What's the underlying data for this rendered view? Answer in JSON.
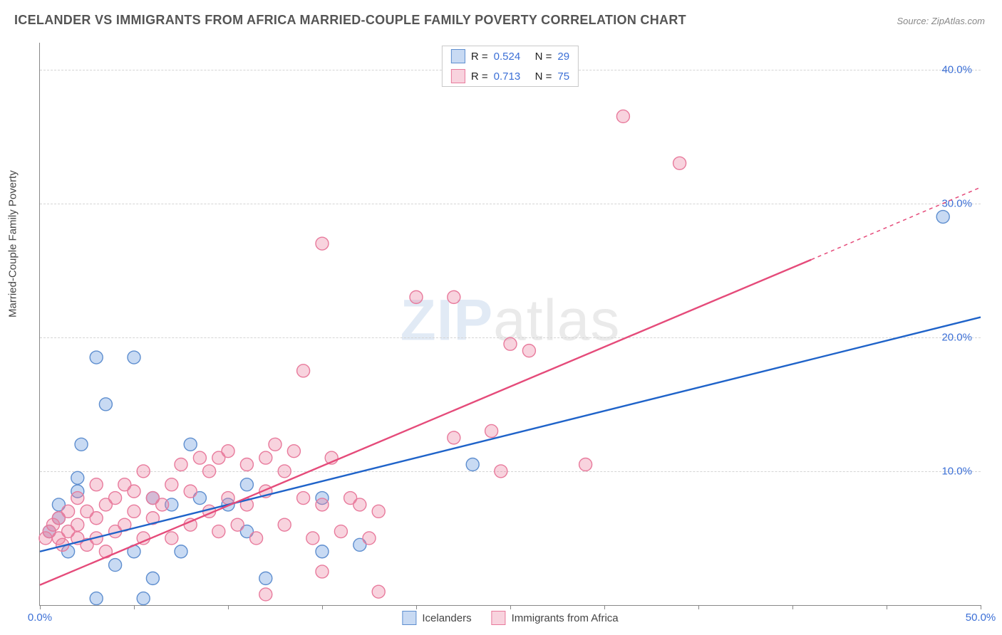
{
  "title": "ICELANDER VS IMMIGRANTS FROM AFRICA MARRIED-COUPLE FAMILY POVERTY CORRELATION CHART",
  "source": "Source: ZipAtlas.com",
  "y_axis_label": "Married-Couple Family Poverty",
  "watermark_a": "ZIP",
  "watermark_b": "atlas",
  "chart": {
    "type": "scatter",
    "background_color": "#ffffff",
    "grid_color": "#d5d5d5",
    "axis_color": "#888888",
    "tick_label_color": "#3b6fd6",
    "xlim": [
      0,
      50
    ],
    "ylim": [
      0,
      42
    ],
    "x_ticks": [
      0,
      5,
      10,
      15,
      20,
      25,
      30,
      35,
      40,
      45,
      50
    ],
    "x_tick_labels": {
      "0": "0.0%",
      "50": "50.0%"
    },
    "y_gridlines": [
      10,
      20,
      30,
      40
    ],
    "y_tick_labels": {
      "10": "10.0%",
      "20": "20.0%",
      "30": "30.0%",
      "40": "40.0%"
    },
    "marker_radius": 9,
    "marker_stroke_width": 1.4,
    "trend_line_width": 2.4,
    "series": [
      {
        "id": "icelanders",
        "label": "Icelanders",
        "fill": "rgba(96,150,220,0.35)",
        "stroke": "#5e8ecf",
        "line_color": "#1f63c9",
        "R": "0.524",
        "N": "29",
        "trend_solid": {
          "x1": 0,
          "y1": 4.0,
          "x2": 50,
          "y2": 21.5
        },
        "points": [
          [
            0.5,
            5.5
          ],
          [
            1,
            6.5
          ],
          [
            1,
            7.5
          ],
          [
            1.5,
            4
          ],
          [
            2,
            8.5
          ],
          [
            2,
            9.5
          ],
          [
            2.2,
            12
          ],
          [
            3,
            18.5
          ],
          [
            3,
            0.5
          ],
          [
            3.5,
            15
          ],
          [
            4,
            3
          ],
          [
            5,
            18.5
          ],
          [
            5,
            4
          ],
          [
            5.5,
            0.5
          ],
          [
            6,
            2
          ],
          [
            6,
            8
          ],
          [
            7,
            7.5
          ],
          [
            7.5,
            4
          ],
          [
            8,
            12
          ],
          [
            8.5,
            8
          ],
          [
            10,
            7.5
          ],
          [
            11,
            5.5
          ],
          [
            11,
            9
          ],
          [
            12,
            2
          ],
          [
            15,
            4
          ],
          [
            15,
            8
          ],
          [
            17,
            4.5
          ],
          [
            23,
            10.5
          ],
          [
            48,
            29
          ]
        ]
      },
      {
        "id": "immigrants",
        "label": "Immigrants from Africa",
        "fill": "rgba(235,130,160,0.35)",
        "stroke": "#e87a9c",
        "line_color": "#e54b7a",
        "R": "0.713",
        "N": "75",
        "trend_solid": {
          "x1": 0,
          "y1": 1.5,
          "x2": 41,
          "y2": 25.8
        },
        "trend_dashed": {
          "x1": 41,
          "y1": 25.8,
          "x2": 50,
          "y2": 31.2
        },
        "points": [
          [
            0.3,
            5
          ],
          [
            0.5,
            5.5
          ],
          [
            0.7,
            6
          ],
          [
            1,
            5
          ],
          [
            1,
            6.5
          ],
          [
            1.2,
            4.5
          ],
          [
            1.5,
            5.5
          ],
          [
            1.5,
            7
          ],
          [
            2,
            5
          ],
          [
            2,
            6
          ],
          [
            2,
            8
          ],
          [
            2.5,
            4.5
          ],
          [
            2.5,
            7
          ],
          [
            3,
            5
          ],
          [
            3,
            6.5
          ],
          [
            3,
            9
          ],
          [
            3.5,
            4
          ],
          [
            3.5,
            7.5
          ],
          [
            4,
            5.5
          ],
          [
            4,
            8
          ],
          [
            4.5,
            6
          ],
          [
            4.5,
            9
          ],
          [
            5,
            7
          ],
          [
            5,
            8.5
          ],
          [
            5.5,
            5
          ],
          [
            5.5,
            10
          ],
          [
            6,
            6.5
          ],
          [
            6,
            8
          ],
          [
            6.5,
            7.5
          ],
          [
            7,
            5
          ],
          [
            7,
            9
          ],
          [
            7.5,
            10.5
          ],
          [
            8,
            6
          ],
          [
            8,
            8.5
          ],
          [
            8.5,
            11
          ],
          [
            9,
            7
          ],
          [
            9,
            10
          ],
          [
            9.5,
            5.5
          ],
          [
            9.5,
            11
          ],
          [
            10,
            8
          ],
          [
            10,
            11.5
          ],
          [
            10.5,
            6
          ],
          [
            11,
            7.5
          ],
          [
            11,
            10.5
          ],
          [
            11.5,
            5
          ],
          [
            12,
            11
          ],
          [
            12,
            8.5
          ],
          [
            12.5,
            12
          ],
          [
            13,
            6
          ],
          [
            13,
            10
          ],
          [
            13.5,
            11.5
          ],
          [
            14,
            17.5
          ],
          [
            14,
            8
          ],
          [
            14.5,
            5
          ],
          [
            15,
            7.5
          ],
          [
            15,
            2.5
          ],
          [
            15.5,
            11
          ],
          [
            15,
            27
          ],
          [
            16,
            5.5
          ],
          [
            16.5,
            8
          ],
          [
            17,
            7.5
          ],
          [
            17.5,
            5
          ],
          [
            18,
            7
          ],
          [
            20,
            23
          ],
          [
            22,
            23
          ],
          [
            22,
            12.5
          ],
          [
            24,
            13
          ],
          [
            24.5,
            10
          ],
          [
            25,
            19.5
          ],
          [
            26,
            19
          ],
          [
            29,
            10.5
          ],
          [
            31,
            36.5
          ],
          [
            34,
            33
          ],
          [
            18,
            1
          ],
          [
            12,
            0.8
          ]
        ]
      }
    ]
  },
  "legend_top": {
    "r_label": "R =",
    "n_label": "N ="
  }
}
